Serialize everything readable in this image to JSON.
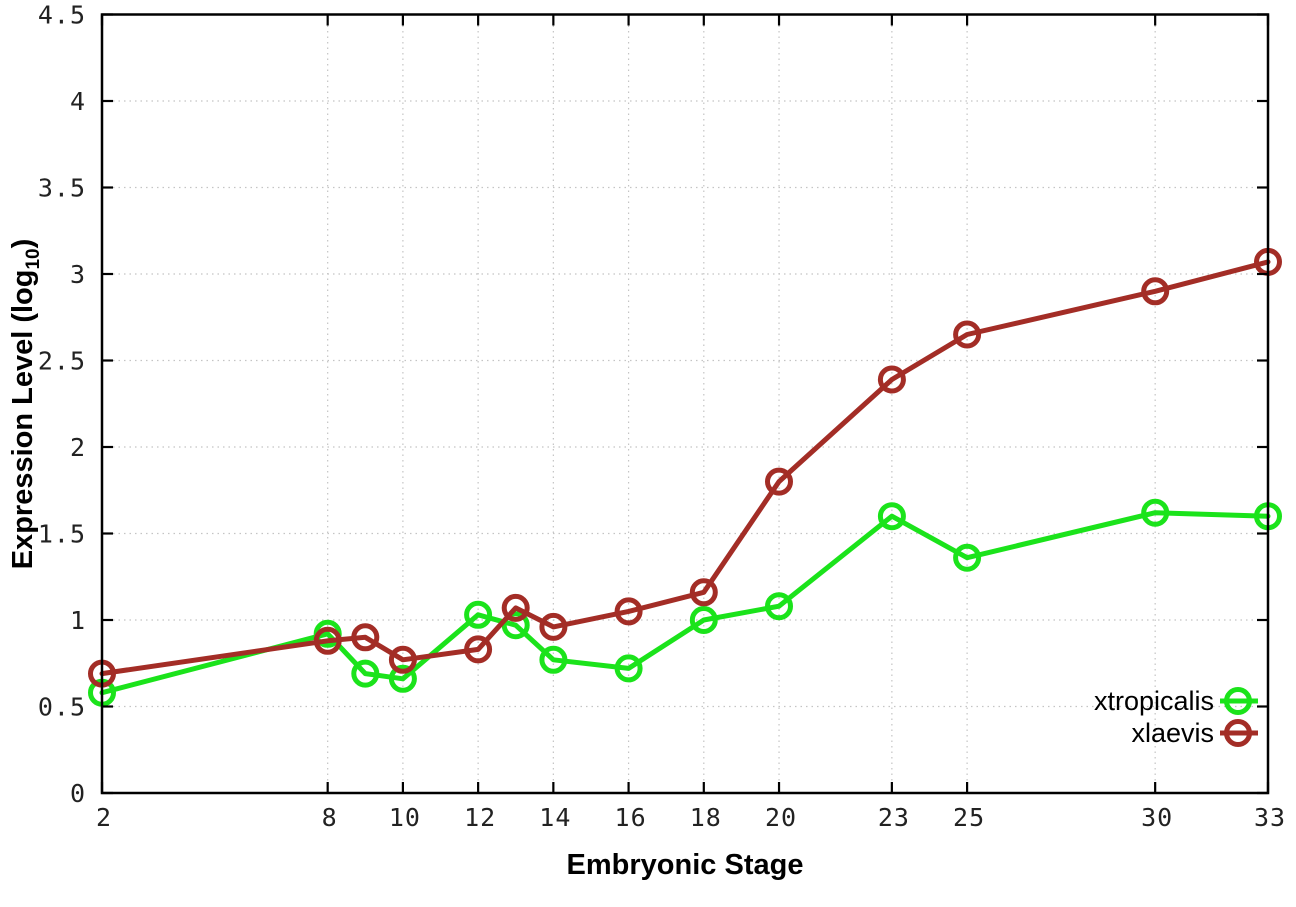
{
  "chart_data": {
    "type": "line",
    "title": "",
    "xlabel": "Embryonic Stage",
    "ylabel": "Expression Level (log10)",
    "ylabel_rich": {
      "pre": "Expression Level (log",
      "sub": "10",
      "post": ")"
    },
    "x": [
      2,
      8,
      9,
      10,
      12,
      13,
      14,
      16,
      18,
      20,
      23,
      25,
      30,
      33
    ],
    "x_ticks": [
      2,
      8,
      10,
      12,
      14,
      16,
      18,
      20,
      23,
      25,
      30,
      33
    ],
    "x_tick_labels": [
      "2",
      "8",
      "10",
      "12",
      "14",
      "16",
      "18",
      "20",
      "23",
      "25",
      "30",
      "33"
    ],
    "y_ticks": [
      0,
      0.5,
      1,
      1.5,
      2,
      2.5,
      3,
      3.5,
      4,
      4.5
    ],
    "y_tick_labels": [
      "0",
      "0.5",
      "1",
      "1.5",
      "2",
      "2.5",
      "3",
      "3.5",
      "4",
      "4.5"
    ],
    "xlim": [
      2,
      33
    ],
    "ylim": [
      0,
      4.5
    ],
    "grid": true,
    "legend_position": "inside-bottom-right",
    "series": [
      {
        "name": "xtropicalis",
        "color": "#1be31b",
        "marker": "open-circle",
        "values": [
          0.58,
          0.92,
          0.69,
          0.66,
          1.03,
          0.97,
          0.77,
          0.72,
          1.0,
          1.08,
          1.6,
          1.36,
          1.62,
          1.6
        ]
      },
      {
        "name": "xlaevis",
        "color": "#a32d26",
        "marker": "open-circle",
        "values": [
          0.69,
          0.88,
          0.9,
          0.77,
          0.83,
          1.07,
          0.96,
          1.05,
          1.16,
          1.8,
          2.39,
          2.65,
          2.9,
          3.07
        ]
      }
    ]
  },
  "colors": {
    "background": "#ffffff",
    "axis": "#000000",
    "grid": "#c4c4c4",
    "xtropicalis": "#1be31b",
    "xlaevis": "#a32d26"
  }
}
